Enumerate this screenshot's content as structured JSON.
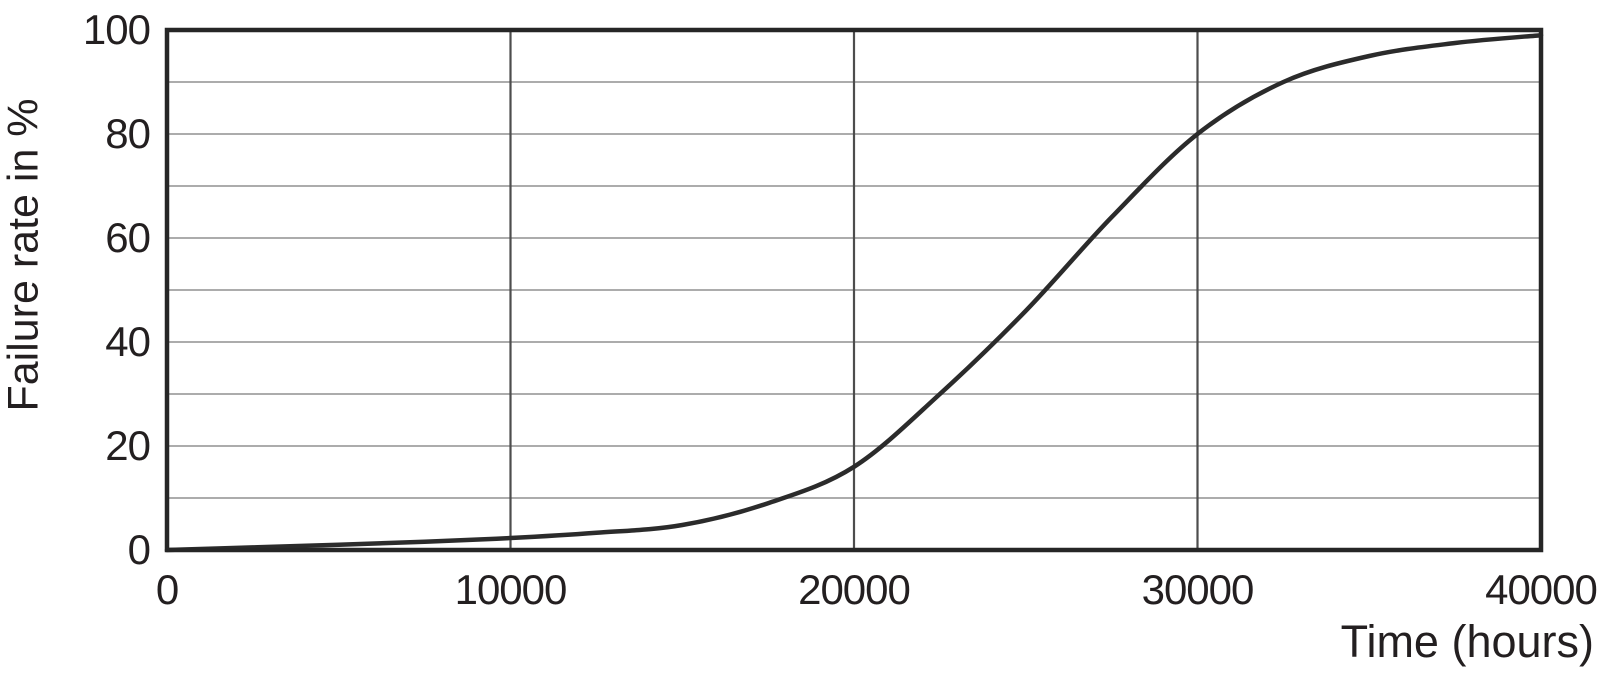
{
  "chart_data": {
    "type": "line",
    "title": "",
    "xlabel": "Time (hours)",
    "ylabel": "Failure rate in %",
    "xlim": [
      0,
      40000
    ],
    "ylim": [
      0,
      100
    ],
    "xticks": [
      "0",
      "10000",
      "20000",
      "30000",
      "40000"
    ],
    "xtick_values": [
      0,
      10000,
      20000,
      30000,
      40000
    ],
    "yticks": [
      "0",
      "20",
      "40",
      "60",
      "80",
      "100"
    ],
    "ytick_values": [
      0,
      20,
      40,
      60,
      80,
      100
    ],
    "grid": true,
    "y_minor_grid_step": 10,
    "x_grid_at": [
      10000,
      20000,
      30000
    ],
    "legend_position": "none",
    "series": [
      {
        "name": "Failure rate",
        "points": [
          [
            0,
            0
          ],
          [
            2500,
            0.5
          ],
          [
            5000,
            1.0
          ],
          [
            7500,
            1.6
          ],
          [
            10000,
            2.3
          ],
          [
            12500,
            3.3
          ],
          [
            15000,
            4.8
          ],
          [
            17500,
            9
          ],
          [
            20000,
            16
          ],
          [
            22500,
            30
          ],
          [
            25000,
            46
          ],
          [
            27500,
            64
          ],
          [
            30000,
            80
          ],
          [
            32500,
            90
          ],
          [
            35000,
            95
          ],
          [
            37500,
            97.5
          ],
          [
            40000,
            99
          ]
        ]
      }
    ],
    "colors": {
      "curve": "#2b2b2b",
      "frame": "#262626",
      "minor_grid": "#909090",
      "major_grid": "#4d4d4d",
      "text": "#231f20",
      "background": "#ffffff"
    }
  }
}
